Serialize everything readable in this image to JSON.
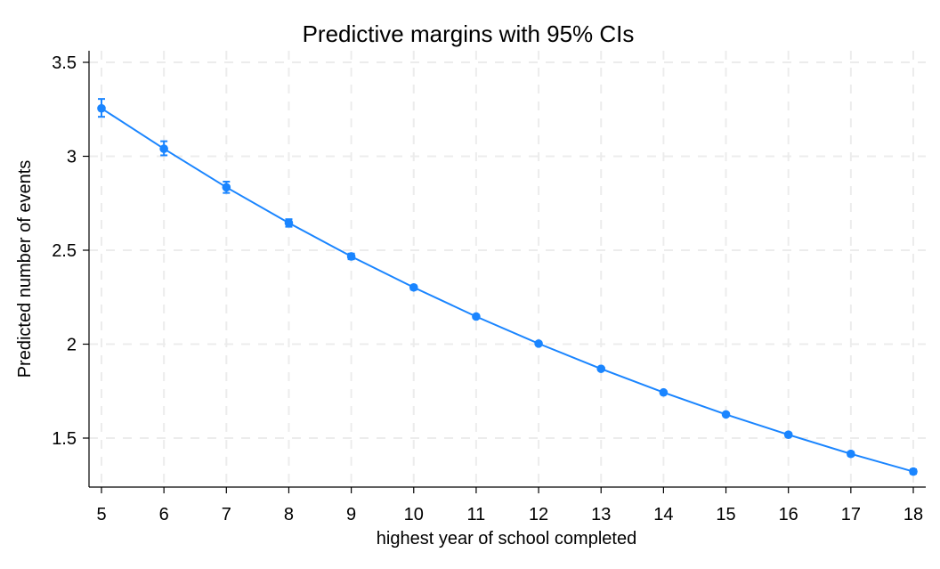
{
  "chart_data": {
    "type": "line",
    "title": "Predictive margins with 95% CIs",
    "xlabel": "highest year of school completed",
    "ylabel": "Predicted number of events",
    "xlim": [
      5,
      18
    ],
    "ylim": [
      1.3,
      3.55
    ],
    "x_ticks": [
      5,
      6,
      7,
      8,
      9,
      10,
      11,
      12,
      13,
      14,
      15,
      16,
      17,
      18
    ],
    "y_ticks": [
      1.5,
      2,
      2.5,
      3,
      3.5
    ],
    "y_tick_labels": [
      "1.5",
      "2",
      "2.5",
      "3",
      "3.5"
    ],
    "grid": true,
    "grid_style": "dashed",
    "series": [
      {
        "color": "#1a85ff",
        "points": [
          {
            "x": 5,
            "y": 3.255,
            "lo": 3.21,
            "hi": 3.305
          },
          {
            "x": 6,
            "y": 3.04,
            "lo": 3.005,
            "hi": 3.08
          },
          {
            "x": 7,
            "y": 2.835,
            "lo": 2.805,
            "hi": 2.865
          },
          {
            "x": 8,
            "y": 2.645,
            "lo": 2.625,
            "hi": 2.665
          },
          {
            "x": 9,
            "y": 2.467,
            "lo": 2.452,
            "hi": 2.482
          },
          {
            "x": 10,
            "y": 2.302,
            "lo": 2.29,
            "hi": 2.312
          },
          {
            "x": 11,
            "y": 2.147,
            "lo": 2.139,
            "hi": 2.155
          },
          {
            "x": 12,
            "y": 2.003,
            "lo": 1.996,
            "hi": 2.01
          },
          {
            "x": 13,
            "y": 1.869,
            "lo": 1.862,
            "hi": 1.876
          },
          {
            "x": 14,
            "y": 1.743,
            "lo": 1.735,
            "hi": 1.751
          },
          {
            "x": 15,
            "y": 1.626,
            "lo": 1.617,
            "hi": 1.635
          },
          {
            "x": 16,
            "y": 1.518,
            "lo": 1.508,
            "hi": 1.528
          },
          {
            "x": 17,
            "y": 1.416,
            "lo": 1.405,
            "hi": 1.427
          },
          {
            "x": 18,
            "y": 1.322,
            "lo": 1.31,
            "hi": 1.334
          }
        ]
      }
    ]
  }
}
